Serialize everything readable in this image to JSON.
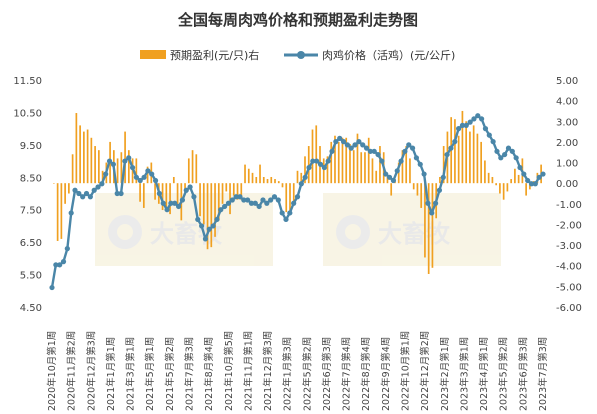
{
  "chart_data": {
    "type": "bar+line",
    "title": "全国每周肉鸡价格和预期盈利走势图",
    "legend": [
      "预期盈利(元/只)右",
      "肉鸡价格（活鸡）(元/公斤)"
    ],
    "left_axis": {
      "ticks": [
        "11.50",
        "10.50",
        "9.50",
        "8.50",
        "7.50",
        "6.50",
        "5.50",
        "4.50"
      ],
      "range": [
        4.5,
        11.5
      ]
    },
    "right_axis": {
      "ticks": [
        "5.00",
        "4.00",
        "3.00",
        "2.00",
        "1.00",
        "0.00",
        "-1.00",
        "-2.00",
        "-3.00",
        "-4.00",
        "-5.00",
        "-6.00"
      ],
      "range": [
        -6,
        5
      ]
    },
    "x_labels": [
      "2020年10月第1周",
      "2020年11月第2周",
      "2020年12月第3周",
      "2021年1月第1周",
      "2021年3月第1周",
      "2021年5月第1周",
      "2021年5月第2周",
      "2021年7月第3周",
      "2021年8月第4周",
      "2021年10月第5周",
      "2021年11月第1周",
      "2021年12月第3周",
      "2022年1月第3周",
      "2022年5月第2周",
      "2022年6月第3周",
      "2022年7月第4周",
      "2022年8月第4周",
      "2022年9月第4周",
      "2022年10月第1周",
      "2022年12月第2周",
      "2023年2月第1周",
      "2023年3月第1周",
      "2023年4月第1周",
      "2023年5月第2周",
      "2023年6月第3周",
      "2023年7月第3周"
    ],
    "series": [
      {
        "name": "肉鸡价格（活鸡）(元/公斤)",
        "color": "#4a86a8",
        "values": [
          5.1,
          5.8,
          5.8,
          5.9,
          6.3,
          7.4,
          8.1,
          8.0,
          7.9,
          8.0,
          7.9,
          8.1,
          8.2,
          8.3,
          8.6,
          9.0,
          8.9,
          8.0,
          8.0,
          9.0,
          9.1,
          8.8,
          8.5,
          8.4,
          8.5,
          8.7,
          8.6,
          8.4,
          8.0,
          7.7,
          7.5,
          7.7,
          7.7,
          7.6,
          7.8,
          8.1,
          8.2,
          7.9,
          7.2,
          7.0,
          6.6,
          6.9,
          7.0,
          7.2,
          7.5,
          7.6,
          7.7,
          7.8,
          7.9,
          7.9,
          7.8,
          7.8,
          7.7,
          7.7,
          7.6,
          7.8,
          7.7,
          7.8,
          7.9,
          7.8,
          7.4,
          7.2,
          7.4,
          7.7,
          7.9,
          8.3,
          8.5,
          8.8,
          9.0,
          9.0,
          8.9,
          8.8,
          9.0,
          9.3,
          9.6,
          9.7,
          9.6,
          9.5,
          9.4,
          9.5,
          9.6,
          9.5,
          9.4,
          9.3,
          9.3,
          9.2,
          9.0,
          8.6,
          8.5,
          8.4,
          8.7,
          9.0,
          9.3,
          9.5,
          9.4,
          9.1,
          8.9,
          8.6,
          7.7,
          7.4,
          7.7,
          8.1,
          8.5,
          9.2,
          9.4,
          9.6,
          10.0,
          10.1,
          10.1,
          10.2,
          10.3,
          10.4,
          10.3,
          10.0,
          9.8,
          9.6,
          9.3,
          9.1,
          9.2,
          9.4,
          9.3,
          9.1,
          8.8,
          8.6,
          8.4,
          8.3,
          8.3,
          8.5,
          8.6
        ]
      },
      {
        "name": "预期盈利(元/只)右",
        "color": "#f0a020",
        "values": [
          0.0,
          -2.8,
          -2.7,
          -1.0,
          -0.5,
          1.4,
          3.4,
          2.8,
          2.5,
          2.6,
          2.2,
          1.8,
          1.6,
          0.6,
          1.0,
          2.0,
          1.6,
          1.2,
          1.5,
          2.5,
          1.6,
          1.2,
          1.2,
          -0.9,
          -1.2,
          0.8,
          1.0,
          -0.8,
          -1.0,
          -1.3,
          -1.2,
          -1.5,
          0.3,
          -1.2,
          -1.8,
          -0.3,
          1.2,
          1.6,
          1.4,
          -1.6,
          -2.0,
          -3.2,
          -3.1,
          -2.6,
          -1.8,
          -1.0,
          -0.4,
          -1.5,
          -0.6,
          -0.8,
          -0.8,
          0.9,
          0.7,
          0.5,
          0.3,
          0.9,
          0.3,
          0.2,
          0.3,
          0.2,
          0.1,
          -0.2,
          -1.4,
          -1.5,
          -1.0,
          0.6,
          0.5,
          1.3,
          1.8,
          2.6,
          2.8,
          1.8,
          1.2,
          1.3,
          2.0,
          2.3,
          2.0,
          2.2,
          2.2,
          1.9,
          1.6,
          2.4,
          1.5,
          1.5,
          2.2,
          1.2,
          0.6,
          1.8,
          1.5,
          0.3,
          -0.6,
          0.2,
          1.0,
          1.6,
          1.8,
          1.2,
          -0.3,
          -0.6,
          -1.2,
          -3.6,
          -4.4,
          -4.1,
          -1.7,
          0.3,
          1.8,
          2.5,
          3.2,
          3.1,
          2.3,
          3.5,
          3.0,
          2.5,
          2.8,
          2.4,
          2.0,
          1.1,
          0.5,
          0.3,
          -0.1,
          -0.5,
          -0.8,
          -0.4,
          0.2,
          0.7,
          0.4,
          1.2,
          -0.6,
          -0.3,
          0.1,
          0.5,
          0.9
        ]
      }
    ],
    "watermark": "大畜牧 www.dxumu.com"
  }
}
